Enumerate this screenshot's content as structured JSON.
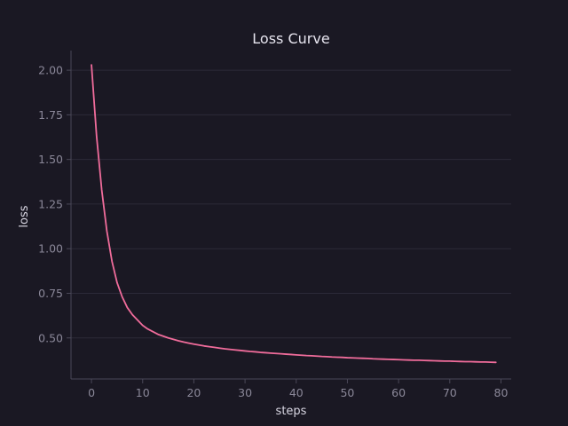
{
  "chart_data": {
    "type": "line",
    "title": "Loss Curve",
    "xlabel": "steps",
    "ylabel": "loss",
    "xlim": [
      -4,
      82
    ],
    "ylim": [
      0.27,
      2.11
    ],
    "xticks": [
      0,
      10,
      20,
      30,
      40,
      50,
      60,
      70,
      80
    ],
    "yticks": [
      0.5,
      0.75,
      1.0,
      1.25,
      1.5,
      1.75,
      2.0
    ],
    "xtick_labels": [
      "0",
      "10",
      "20",
      "30",
      "40",
      "50",
      "60",
      "70",
      "80"
    ],
    "ytick_labels": [
      "0.50",
      "0.75",
      "1.00",
      "1.25",
      "1.50",
      "1.75",
      "2.00"
    ],
    "grid": "horizontal",
    "series": [
      {
        "color": "#f06c9b",
        "x": [
          0,
          1,
          2,
          3,
          4,
          5,
          6,
          7,
          8,
          9,
          10,
          11,
          12,
          13,
          14,
          15,
          16,
          17,
          18,
          19,
          20,
          21,
          22,
          23,
          24,
          25,
          26,
          27,
          28,
          29,
          30,
          31,
          32,
          33,
          34,
          35,
          36,
          37,
          38,
          39,
          40,
          41,
          42,
          43,
          44,
          45,
          46,
          47,
          48,
          49,
          50,
          51,
          52,
          53,
          54,
          55,
          56,
          57,
          58,
          59,
          60,
          61,
          62,
          63,
          64,
          65,
          66,
          67,
          68,
          69,
          70,
          71,
          72,
          73,
          74,
          75,
          76,
          77,
          78,
          79
        ],
        "y": [
          2.03,
          1.63,
          1.33,
          1.1,
          0.93,
          0.81,
          0.73,
          0.67,
          0.63,
          0.6,
          0.57,
          0.55,
          0.535,
          0.52,
          0.51,
          0.5,
          0.492,
          0.484,
          0.477,
          0.471,
          0.465,
          0.46,
          0.455,
          0.451,
          0.447,
          0.443,
          0.439,
          0.436,
          0.433,
          0.43,
          0.427,
          0.424,
          0.422,
          0.419,
          0.417,
          0.415,
          0.413,
          0.411,
          0.409,
          0.407,
          0.405,
          0.403,
          0.401,
          0.4,
          0.398,
          0.396,
          0.395,
          0.393,
          0.392,
          0.391,
          0.389,
          0.388,
          0.387,
          0.386,
          0.385,
          0.383,
          0.382,
          0.381,
          0.38,
          0.379,
          0.378,
          0.377,
          0.376,
          0.375,
          0.375,
          0.374,
          0.373,
          0.372,
          0.371,
          0.37,
          0.37,
          0.369,
          0.368,
          0.367,
          0.367,
          0.366,
          0.365,
          0.365,
          0.364,
          0.363
        ]
      }
    ]
  }
}
